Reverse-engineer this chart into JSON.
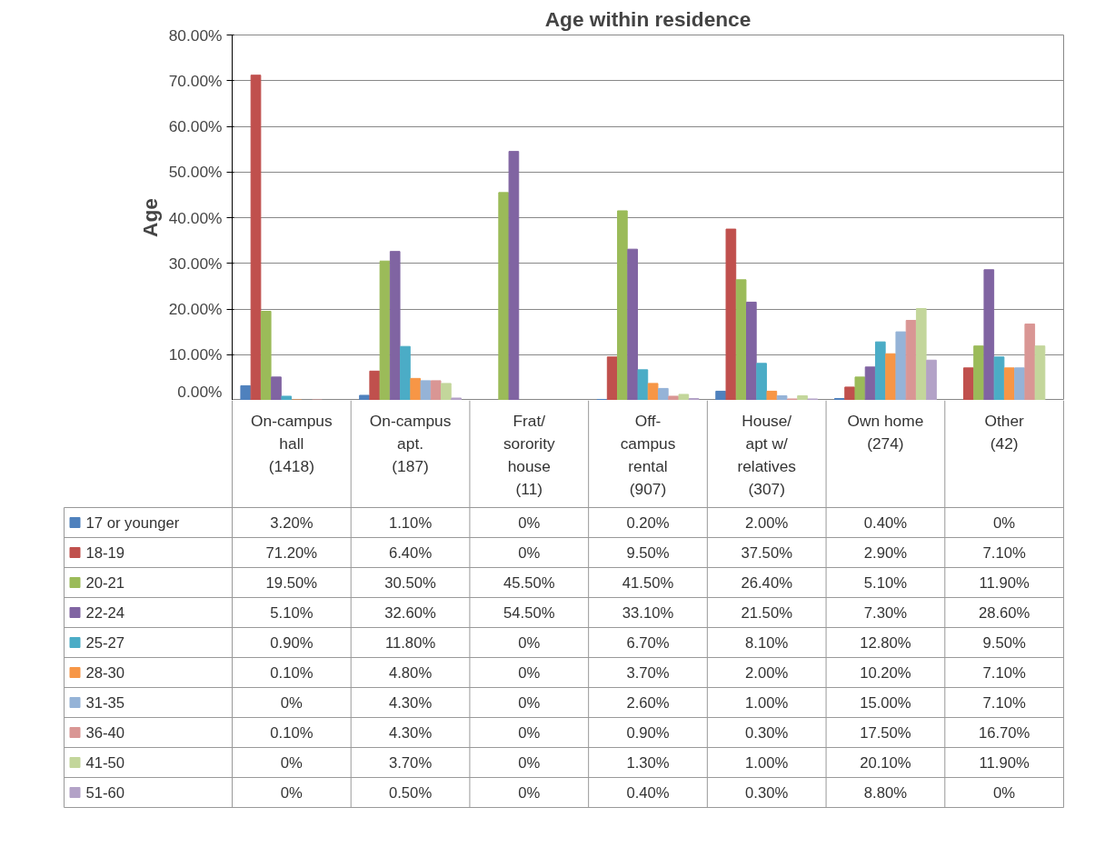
{
  "chart_data": {
    "type": "bar",
    "title": "Age within residence",
    "ylabel": "Age",
    "categories": [
      "On-campus hall (1418)",
      "On-campus apt. (187)",
      "Frat/ sorority house (11)",
      "Off-campus rental (907)",
      "House/ apt w/ relatives (307)",
      "Own home (274)",
      "Other (42)"
    ],
    "ylim": [
      0,
      80
    ],
    "yticks": [
      {
        "value": 0,
        "label": "0.00%"
      },
      {
        "value": 10,
        "label": "10.00%"
      },
      {
        "value": 20,
        "label": "20.00%"
      },
      {
        "value": 30,
        "label": "30.00%"
      },
      {
        "value": 40,
        "label": "40.00%"
      },
      {
        "value": 50,
        "label": "50.00%"
      },
      {
        "value": 60,
        "label": "60.00%"
      },
      {
        "value": 70,
        "label": "70.00%"
      },
      {
        "value": 80,
        "label": "80.00%"
      }
    ],
    "grid": "y",
    "legend": "bottom",
    "series": [
      {
        "name": "17 or younger",
        "color": "#4f81bd",
        "values": [
          3.2,
          1.1,
          0,
          0.2,
          2.0,
          0.4,
          0
        ],
        "value_labels": [
          "3.20%",
          "1.10%",
          "0%",
          "0.20%",
          "2.00%",
          "0.40%",
          "0%"
        ]
      },
      {
        "name": "18-19",
        "color": "#c0504d",
        "values": [
          71.2,
          6.4,
          0,
          9.5,
          37.5,
          2.9,
          7.1
        ],
        "value_labels": [
          "71.20%",
          "6.40%",
          "0%",
          "9.50%",
          "37.50%",
          "2.90%",
          "7.10%"
        ]
      },
      {
        "name": "20-21",
        "color": "#9bbb59",
        "values": [
          19.5,
          30.5,
          45.5,
          41.5,
          26.4,
          5.1,
          11.9
        ],
        "value_labels": [
          "19.50%",
          "30.50%",
          "45.50%",
          "41.50%",
          "26.40%",
          "5.10%",
          "11.90%"
        ]
      },
      {
        "name": "22-24",
        "color": "#8064a2",
        "values": [
          5.1,
          32.6,
          54.5,
          33.1,
          21.5,
          7.3,
          28.6
        ],
        "value_labels": [
          "5.10%",
          "32.60%",
          "54.50%",
          "33.10%",
          "21.50%",
          "7.30%",
          "28.60%"
        ]
      },
      {
        "name": "25-27",
        "color": "#4bacc6",
        "values": [
          0.9,
          11.8,
          0,
          6.7,
          8.1,
          12.8,
          9.5
        ],
        "value_labels": [
          "0.90%",
          "11.80%",
          "0%",
          "6.70%",
          "8.10%",
          "12.80%",
          "9.50%"
        ]
      },
      {
        "name": "28-30",
        "color": "#f79646",
        "values": [
          0.1,
          4.8,
          0,
          3.7,
          2.0,
          10.2,
          7.1
        ],
        "value_labels": [
          "0.10%",
          "4.80%",
          "0%",
          "3.70%",
          "2.00%",
          "10.20%",
          "7.10%"
        ]
      },
      {
        "name": "31-35",
        "color": "#95b3d7",
        "values": [
          0,
          4.3,
          0,
          2.6,
          1.0,
          15.0,
          7.1
        ],
        "value_labels": [
          "0%",
          "4.30%",
          "0%",
          "2.60%",
          "1.00%",
          "15.00%",
          "7.10%"
        ]
      },
      {
        "name": "36-40",
        "color": "#d99694",
        "values": [
          0.1,
          4.3,
          0,
          0.9,
          0.3,
          17.5,
          16.7
        ],
        "value_labels": [
          "0.10%",
          "4.30%",
          "0%",
          "0.90%",
          "0.30%",
          "17.50%",
          "16.70%"
        ]
      },
      {
        "name": "41-50",
        "color": "#c3d69b",
        "values": [
          0,
          3.7,
          0,
          1.3,
          1.0,
          20.1,
          11.9
        ],
        "value_labels": [
          "0%",
          "3.70%",
          "0%",
          "1.30%",
          "1.00%",
          "20.10%",
          "11.90%"
        ]
      },
      {
        "name": "51-60",
        "color": "#b3a2c7",
        "values": [
          0,
          0.5,
          0,
          0.4,
          0.3,
          8.8,
          0
        ],
        "value_labels": [
          "0%",
          "0.50%",
          "0%",
          "0.40%",
          "0.30%",
          "8.80%",
          "0%"
        ]
      }
    ]
  }
}
